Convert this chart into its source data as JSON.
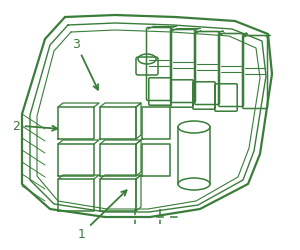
{
  "bg_color": "#ffffff",
  "line_color": "#3a7d3a",
  "lw": 1.1
}
